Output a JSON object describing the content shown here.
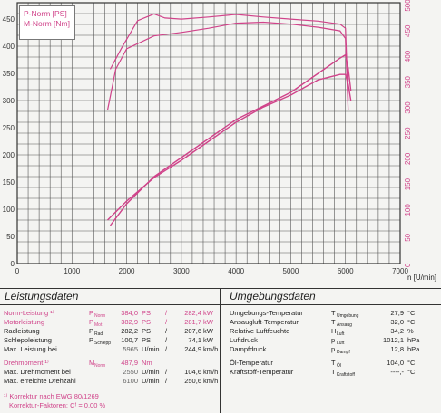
{
  "legend": {
    "line1": "P-Norm [PS]",
    "line2": "M-Norm [Nm]"
  },
  "axis_unit": "n [U/min]",
  "chart_data": {
    "type": "line",
    "xlabel": "n [U/min]",
    "x_ticks": [
      0,
      1000,
      2000,
      3000,
      4000,
      5000,
      6000,
      7000
    ],
    "y_left_ticks": [
      0,
      50,
      100,
      150,
      200,
      250,
      300,
      350,
      400,
      450
    ],
    "y_right_ticks": [
      0,
      50,
      100,
      150,
      200,
      250,
      300,
      350,
      400,
      450,
      500
    ],
    "xlim": [
      0,
      7000
    ],
    "ylim": [
      0,
      480
    ],
    "y2lim": [
      0,
      510
    ],
    "grid": true,
    "legend_position": "top-left",
    "series": [
      {
        "name": "P-Norm [PS]",
        "axis": "left",
        "color": "#d0438a",
        "x": [
          1700,
          2000,
          2500,
          3000,
          3500,
          4000,
          4500,
          5000,
          5500,
          5900,
          6000,
          6050,
          6100
        ],
        "y": [
          70,
          110,
          160,
          195,
          230,
          265,
          290,
          315,
          350,
          378,
          384,
          360,
          318
        ]
      },
      {
        "name": "P-Norm [PS] 2",
        "axis": "left",
        "color": "#d0438a",
        "x": [
          1650,
          2000,
          2500,
          3000,
          3500,
          4000,
          4500,
          5000,
          5500,
          5900,
          6000,
          6050,
          6100
        ],
        "y": [
          80,
          115,
          158,
          190,
          225,
          260,
          288,
          310,
          338,
          348,
          348,
          330,
          300
        ]
      },
      {
        "name": "M-Norm [Nm]",
        "axis": "right",
        "color": "#d0438a",
        "x": [
          1700,
          1900,
          2200,
          2500,
          2700,
          3000,
          3500,
          4000,
          4500,
          5000,
          5500,
          5900,
          6000,
          6050
        ],
        "y": [
          380,
          420,
          475,
          488,
          480,
          478,
          482,
          487,
          482,
          478,
          474,
          468,
          460,
          320
        ]
      },
      {
        "name": "M-Norm [Nm] 2",
        "axis": "right",
        "color": "#d0438a",
        "x": [
          1650,
          1800,
          2000,
          2500,
          3000,
          3500,
          4000,
          4500,
          5000,
          5500,
          5900,
          6000,
          6050
        ],
        "y": [
          300,
          380,
          420,
          445,
          452,
          460,
          470,
          472,
          468,
          462,
          455,
          440,
          300
        ]
      }
    ]
  },
  "leistung": {
    "title": "Leistungsdaten",
    "rows": [
      {
        "label": "Norm-Leistung ¹⁾",
        "sym": "P",
        "sub": "Norm",
        "v1": "384,0",
        "u1": "PS",
        "sep": "/",
        "v2": "282,4",
        "u2": "kW",
        "color": "pink"
      },
      {
        "label": "Motorleistung",
        "sym": "P",
        "sub": "Mot",
        "v1": "382,9",
        "u1": "PS",
        "sep": "/",
        "v2": "281,7",
        "u2": "kW",
        "color": "pink"
      },
      {
        "label": "Radleistung",
        "sym": "P",
        "sub": "Rad",
        "v1": "282,2",
        "u1": "PS",
        "sep": "/",
        "v2": "207,6",
        "u2": "kW",
        "color": "black"
      },
      {
        "label": "Schleppleistung",
        "sym": "P",
        "sub": "Schlepp",
        "v1": "100,7",
        "u1": "PS",
        "sep": "/",
        "v2": "74,1",
        "u2": "kW",
        "color": "black"
      },
      {
        "label": "Max. Leistung bei",
        "sym": "",
        "sub": "",
        "v1": "5965",
        "u1": "U/min",
        "sep": "/",
        "v2": "244,9",
        "u2": "km/h",
        "color": "black"
      },
      {
        "label": "Drehmoment ¹⁾",
        "sym": "M",
        "sub": "Norm",
        "v1": "487,9",
        "u1": "Nm",
        "sep": "",
        "v2": "",
        "u2": "",
        "color": "pink"
      },
      {
        "label": "Max. Drehmoment bei",
        "sym": "",
        "sub": "",
        "v1": "2550",
        "u1": "U/min",
        "sep": "/",
        "v2": "104,6",
        "u2": "km/h",
        "color": "black"
      },
      {
        "label": "Max. erreichte Drehzahl",
        "sym": "",
        "sub": "",
        "v1": "6100",
        "u1": "U/min",
        "sep": "/",
        "v2": "250,6",
        "u2": "km/h",
        "color": "black"
      }
    ],
    "note1": "¹⁾ Korrektur nach EWG 80/1269",
    "note2": "Korrektur-Faktoren: Cᶠ = 0,00 %"
  },
  "umgebung": {
    "title": "Umgebungsdaten",
    "rows": [
      {
        "label": "Umgebungs-Temperatur",
        "sym": "T",
        "sub": "Umgebung",
        "val": "27,9",
        "unit": "°C"
      },
      {
        "label": "Ansaugluft-Temperatur",
        "sym": "T",
        "sub": "Ansaug",
        "val": "32,0",
        "unit": "°C"
      },
      {
        "label": "Relative Luftfeuchte",
        "sym": "H",
        "sub": "Luft",
        "val": "34,2",
        "unit": "%"
      },
      {
        "label": "Luftdruck",
        "sym": "p",
        "sub": "Luft",
        "val": "1012,1",
        "unit": "hPa"
      },
      {
        "label": "Dampfdruck",
        "sym": "p",
        "sub": "Dampf",
        "val": "12,8",
        "unit": "hPa"
      },
      {
        "label": "Öl-Temperatur",
        "sym": "T",
        "sub": "Öl",
        "val": "104,0",
        "unit": "°C"
      },
      {
        "label": "Kraftstoff-Temperatur",
        "sym": "T",
        "sub": "Kraftstoff",
        "val": "----,-",
        "unit": "°C"
      }
    ]
  }
}
